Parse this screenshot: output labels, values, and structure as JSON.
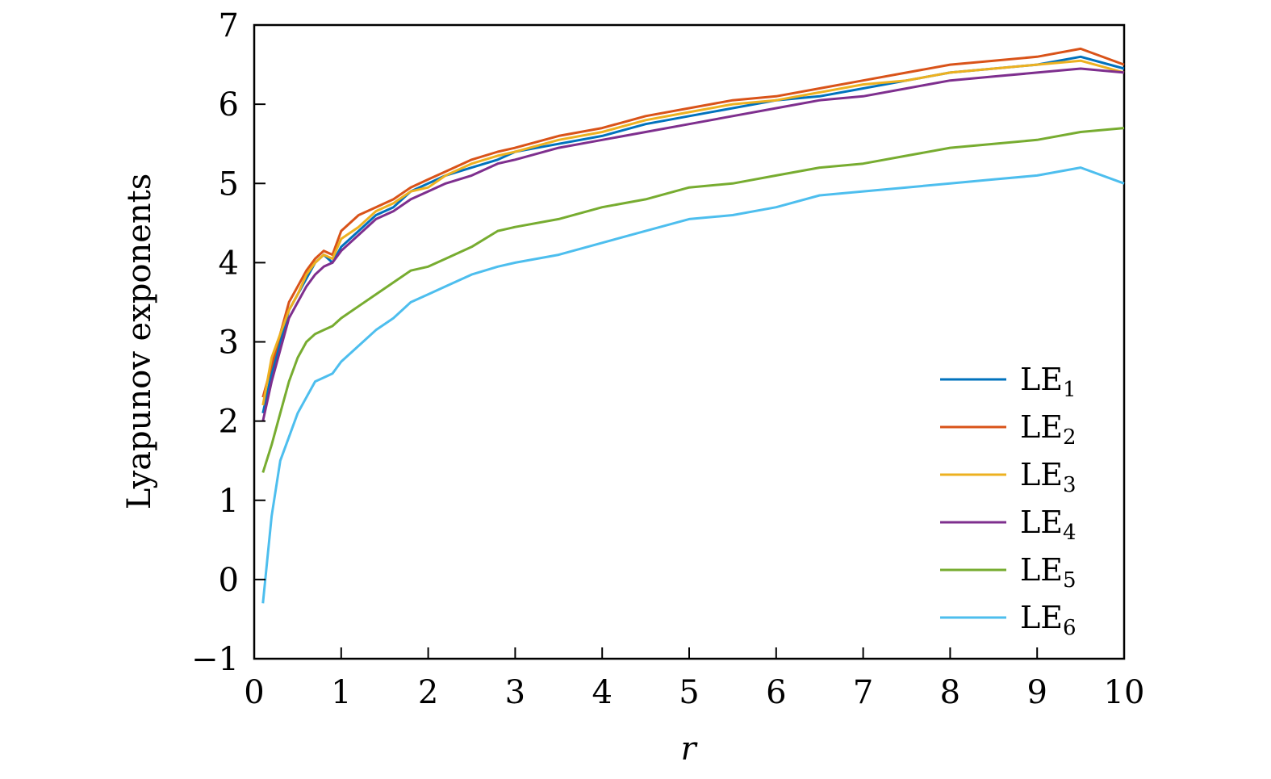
{
  "chart_data": {
    "type": "line",
    "title": "",
    "xlabel": "r",
    "ylabel": "Lyapunov exponents",
    "xlim": [
      0,
      10
    ],
    "ylim": [
      -1,
      7
    ],
    "xticks": [
      0,
      1,
      2,
      3,
      4,
      5,
      6,
      7,
      8,
      9,
      10
    ],
    "yticks": [
      -1,
      0,
      1,
      2,
      3,
      4,
      5,
      6,
      7
    ],
    "xtick_labels": [
      "0",
      "1",
      "2",
      "3",
      "4",
      "5",
      "6",
      "7",
      "8",
      "9",
      "10"
    ],
    "ytick_labels": [
      "−1",
      "0",
      "1",
      "2",
      "3",
      "4",
      "5",
      "6",
      "7"
    ],
    "grid": false,
    "legend_position": "bottom-right",
    "x": [
      0.1,
      0.2,
      0.3,
      0.4,
      0.5,
      0.6,
      0.7,
      0.8,
      0.9,
      1.0,
      1.2,
      1.4,
      1.6,
      1.8,
      2.0,
      2.2,
      2.5,
      2.8,
      3.0,
      3.5,
      4.0,
      4.5,
      5.0,
      5.5,
      6.0,
      6.5,
      7.0,
      7.5,
      8.0,
      8.5,
      9.0,
      9.5,
      10.0
    ],
    "series": [
      {
        "name": "LE",
        "subscript": "1",
        "color": "#0072BD",
        "values": [
          2.1,
          2.6,
          3.0,
          3.4,
          3.6,
          3.8,
          4.0,
          4.1,
          4.0,
          4.2,
          4.4,
          4.6,
          4.7,
          4.9,
          5.0,
          5.1,
          5.2,
          5.3,
          5.4,
          5.5,
          5.6,
          5.75,
          5.85,
          5.95,
          6.05,
          6.1,
          6.2,
          6.3,
          6.4,
          6.45,
          6.5,
          6.6,
          6.45
        ]
      },
      {
        "name": "LE",
        "subscript": "2",
        "color": "#D95319",
        "values": [
          2.3,
          2.7,
          3.1,
          3.5,
          3.7,
          3.9,
          4.05,
          4.15,
          4.1,
          4.4,
          4.6,
          4.7,
          4.8,
          4.95,
          5.05,
          5.15,
          5.3,
          5.4,
          5.45,
          5.6,
          5.7,
          5.85,
          5.95,
          6.05,
          6.1,
          6.2,
          6.3,
          6.4,
          6.5,
          6.55,
          6.6,
          6.7,
          6.5
        ]
      },
      {
        "name": "LE",
        "subscript": "3",
        "color": "#EDB120",
        "values": [
          2.2,
          2.8,
          3.1,
          3.4,
          3.6,
          3.85,
          4.0,
          4.1,
          4.05,
          4.3,
          4.45,
          4.65,
          4.75,
          4.9,
          4.95,
          5.1,
          5.25,
          5.35,
          5.4,
          5.55,
          5.65,
          5.8,
          5.9,
          6.0,
          6.05,
          6.15,
          6.25,
          6.3,
          6.4,
          6.45,
          6.5,
          6.55,
          6.4
        ]
      },
      {
        "name": "LE",
        "subscript": "4",
        "color": "#7E2F8E",
        "values": [
          2.0,
          2.5,
          2.9,
          3.3,
          3.5,
          3.7,
          3.85,
          3.95,
          4.0,
          4.15,
          4.35,
          4.55,
          4.65,
          4.8,
          4.9,
          5.0,
          5.1,
          5.25,
          5.3,
          5.45,
          5.55,
          5.65,
          5.75,
          5.85,
          5.95,
          6.05,
          6.1,
          6.2,
          6.3,
          6.35,
          6.4,
          6.45,
          6.4
        ]
      },
      {
        "name": "LE",
        "subscript": "5",
        "color": "#77AC30",
        "values": [
          1.35,
          1.7,
          2.1,
          2.5,
          2.8,
          3.0,
          3.1,
          3.15,
          3.2,
          3.3,
          3.45,
          3.6,
          3.75,
          3.9,
          3.95,
          4.05,
          4.2,
          4.4,
          4.45,
          4.55,
          4.7,
          4.8,
          4.95,
          5.0,
          5.1,
          5.2,
          5.25,
          5.35,
          5.45,
          5.5,
          5.55,
          5.65,
          5.7
        ]
      },
      {
        "name": "LE",
        "subscript": "6",
        "color": "#4DBEEE",
        "values": [
          -0.3,
          0.8,
          1.5,
          1.8,
          2.1,
          2.3,
          2.5,
          2.55,
          2.6,
          2.75,
          2.95,
          3.15,
          3.3,
          3.5,
          3.6,
          3.7,
          3.85,
          3.95,
          4.0,
          4.1,
          4.25,
          4.4,
          4.55,
          4.6,
          4.7,
          4.85,
          4.9,
          4.95,
          5.0,
          5.05,
          5.1,
          5.2,
          5.0
        ]
      }
    ]
  }
}
